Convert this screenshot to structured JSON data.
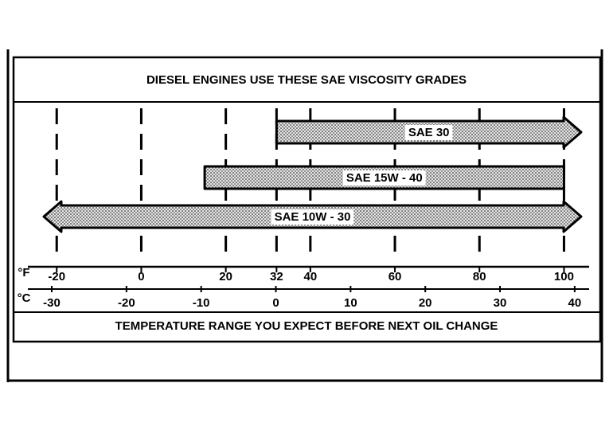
{
  "chart_data": {
    "type": "range",
    "title": "DIESEL ENGINES USE THESE SAE VISCOSITY GRADES",
    "caption": "TEMPERATURE RANGE YOU EXPECT BEFORE NEXT OIL CHANGE",
    "x_label": "°F",
    "x2_label": "°C",
    "xlim": [
      -24,
      105
    ],
    "xticks": [
      -20,
      0,
      20,
      32,
      40,
      60,
      80,
      100
    ],
    "x2lim": [
      -31.6,
      41.4
    ],
    "x2ticks": [
      -30,
      -20,
      -10,
      0,
      10,
      20,
      30,
      40
    ],
    "grid": true,
    "series": [
      {
        "name": "SAE 30",
        "low": 32,
        "high": null
      },
      {
        "name": "SAE 15W - 40",
        "low": 15,
        "high": 100
      },
      {
        "name": "SAE 10W - 30",
        "low": null,
        "high": null
      }
    ]
  }
}
